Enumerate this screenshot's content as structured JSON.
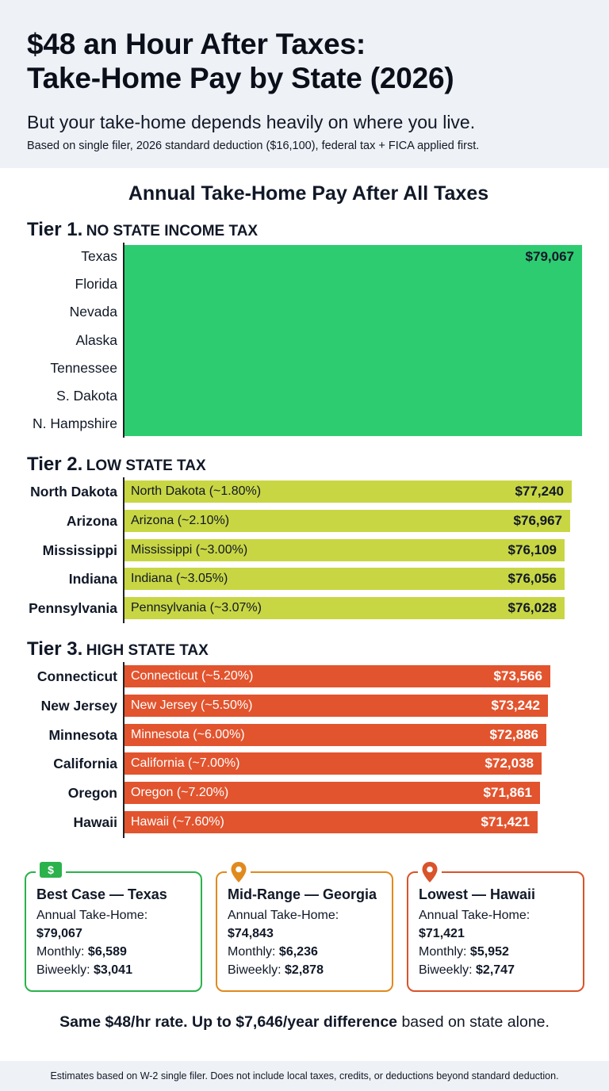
{
  "header": {
    "title_line1": "$48 an Hour After Taxes:",
    "title_line2": "Take-Home Pay by State (2026)",
    "subtitle": "But your take-home depends heavily on where you live.",
    "basis": "Based on single filer, 2026 standard deduction ($16,100), federal tax + FICA applied first."
  },
  "colors": {
    "tier1": "#2ecc71",
    "tier2": "#c8d644",
    "tier3": "#e2542e",
    "card_best": "#2bb24c",
    "card_mid": "#e08a1e",
    "card_low": "#d9532b"
  },
  "chart_data": {
    "type": "bar",
    "title": "Annual Take-Home Pay After All Taxes",
    "orientation": "horizontal",
    "tiers": [
      {
        "tier_label": "Tier 1.",
        "tier_name": "NO STATE INCOME TAX",
        "color": "#2ecc71",
        "grouped_bar": true,
        "categories": [
          "Texas",
          "Florida",
          "Nevada",
          "Alaska",
          "Tennessee",
          "S. Dakota",
          "N. Hampshire"
        ],
        "value": 79067,
        "value_label": "$79,067"
      },
      {
        "tier_label": "Tier 2.",
        "tier_name": "LOW STATE TAX",
        "color": "#c8d644",
        "bars": [
          {
            "state": "North Dakota",
            "inner": "North Dakota (~1.80%)",
            "value": 77240,
            "value_label": "$77,240"
          },
          {
            "state": "Arizona",
            "inner": "Arizona (~2.10%)",
            "value": 76967,
            "value_label": "$76,967"
          },
          {
            "state": "Mississippi",
            "inner": "Mississippi (~3.00%)",
            "value": 76109,
            "value_label": "$76,109"
          },
          {
            "state": "Indiana",
            "inner": "Indiana (~3.05%)",
            "value": 76056,
            "value_label": "$76,056"
          },
          {
            "state": "Pennsylvania",
            "inner": "Pennsylvania (~3.07%)",
            "value": 76028,
            "value_label": "$76,028"
          }
        ]
      },
      {
        "tier_label": "Tier 3.",
        "tier_name": "HIGH STATE TAX",
        "color": "#e2542e",
        "bars": [
          {
            "state": "Connecticut",
            "inner": "Connecticut (~5.20%)",
            "value": 73566,
            "value_label": "$73,566"
          },
          {
            "state": "New Jersey",
            "inner": "New Jersey (~5.50%)",
            "value": 73242,
            "value_label": "$73,242"
          },
          {
            "state": "Minnesota",
            "inner": "Minnesota (~6.00%)",
            "value": 72886,
            "value_label": "$72,886"
          },
          {
            "state": "California",
            "inner": "California (~7.00%)",
            "value": 72038,
            "value_label": "$72,038"
          },
          {
            "state": "Oregon",
            "inner": "Oregon (~7.20%)",
            "value": 71861,
            "value_label": "$71,861"
          },
          {
            "state": "Hawaii",
            "inner": "Hawaii (~7.60%)",
            "value": 71421,
            "value_label": "$71,421"
          }
        ]
      }
    ]
  },
  "cards": [
    {
      "icon": "dollar-bill-icon",
      "color": "#2bb24c",
      "title": "Best Case — Texas",
      "annual_label": "Annual Take-Home:",
      "annual": "$79,067",
      "monthly_label": "Monthly:",
      "monthly": "$6,589",
      "biweekly_label": "Biweekly:",
      "biweekly": "$3,041"
    },
    {
      "icon": "map-pin-icon",
      "color": "#e08a1e",
      "title": "Mid-Range — Georgia",
      "annual_label": "Annual Take-Home:",
      "annual": "$74,843",
      "monthly_label": "Monthly:",
      "monthly": "$6,236",
      "biweekly_label": "Biweekly:",
      "biweekly": "$2,878"
    },
    {
      "icon": "map-pin-icon",
      "color": "#d9532b",
      "title": "Lowest — Hawaii",
      "annual_label": "Annual Take-Home:",
      "annual": "$71,421",
      "monthly_label": "Monthly:",
      "monthly": "$5,952",
      "biweekly_label": "Biweekly:",
      "biweekly": "$2,747"
    }
  ],
  "summary": {
    "bold": "Same $48/hr rate. Up to $7,646/year difference",
    "rest": " based on state alone."
  },
  "footer": "Estimates based on W-2 single filer. Does not include local taxes, credits, or deductions beyond standard deduction."
}
